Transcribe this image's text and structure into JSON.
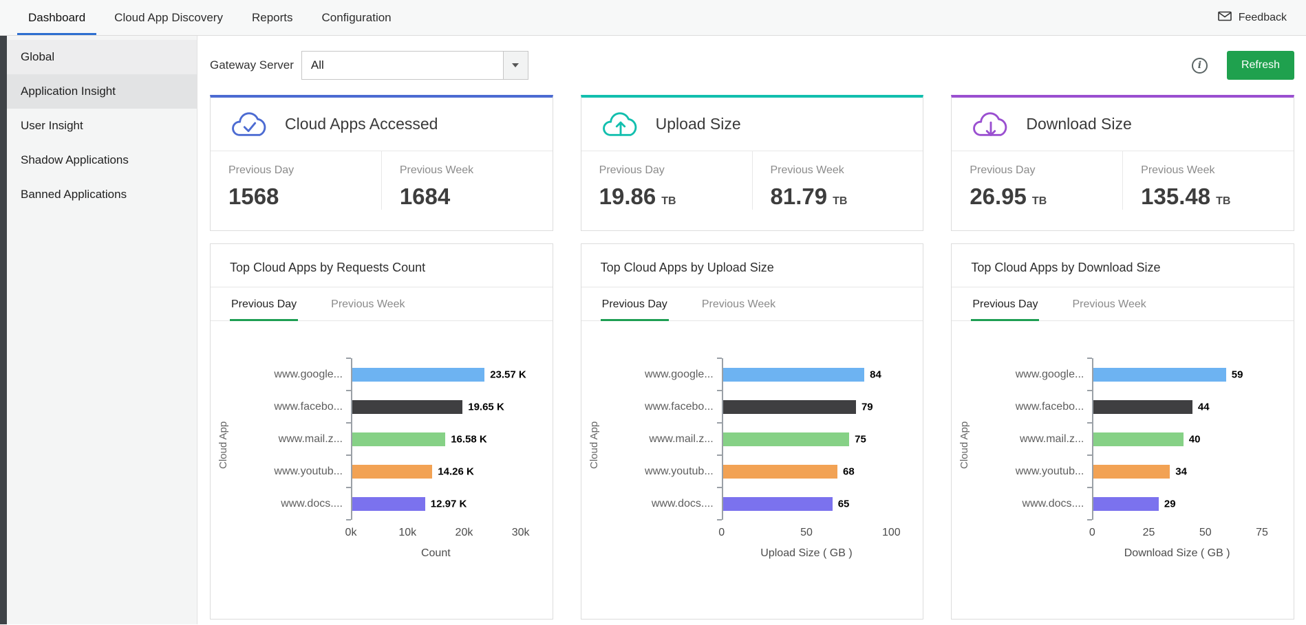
{
  "topnav": {
    "tabs": [
      {
        "label": "Dashboard",
        "active": true
      },
      {
        "label": "Cloud App Discovery",
        "active": false
      },
      {
        "label": "Reports",
        "active": false
      },
      {
        "label": "Configuration",
        "active": false
      }
    ],
    "feedback_label": "Feedback"
  },
  "sidebar": {
    "items": [
      {
        "label": "Global"
      },
      {
        "label": "Application Insight",
        "active": true
      },
      {
        "label": "User Insight"
      },
      {
        "label": "Shadow Applications"
      },
      {
        "label": "Banned Applications"
      }
    ]
  },
  "toolbar": {
    "gateway_server_label": "Gateway Server",
    "gateway_server_value": "All",
    "refresh_label": "Refresh"
  },
  "icons": {
    "info_glyph": "i"
  },
  "colors": {
    "bar_palette": [
      "#6db3f2",
      "#3f3f41",
      "#86d186",
      "#f2a254",
      "#7b72ee"
    ],
    "nav_active_underline": "#2e6fd0",
    "tab_active_underline": "#1e9e53",
    "refresh_button": "#1fa14e"
  },
  "stat_cards": [
    {
      "title": "Cloud Apps Accessed",
      "icon": "cloud-check-icon",
      "accent": "#4c6bd2",
      "previous_day_label": "Previous Day",
      "previous_day_value": "1568",
      "previous_day_unit": "",
      "previous_week_label": "Previous Week",
      "previous_week_value": "1684",
      "previous_week_unit": ""
    },
    {
      "title": "Upload Size",
      "icon": "cloud-upload-icon",
      "accent": "#12bfae",
      "previous_day_label": "Previous Day",
      "previous_day_value": "19.86",
      "previous_day_unit": "TB",
      "previous_week_label": "Previous Week",
      "previous_week_value": "81.79",
      "previous_week_unit": "TB"
    },
    {
      "title": "Download Size",
      "icon": "cloud-download-icon",
      "accent": "#9a4fd0",
      "previous_day_label": "Previous Day",
      "previous_day_value": "26.95",
      "previous_day_unit": "TB",
      "previous_week_label": "Previous Week",
      "previous_week_value": "135.48",
      "previous_week_unit": "TB"
    }
  ],
  "chart_data": [
    {
      "type": "bar",
      "orientation": "horizontal",
      "title": "Top Cloud Apps by Requests Count",
      "tabs": [
        "Previous Day",
        "Previous Week"
      ],
      "active_tab": "Previous Day",
      "categories": [
        "www.google...",
        "www.facebo...",
        "www.mail.z...",
        "www.youtub...",
        "www.docs...."
      ],
      "values": [
        23570,
        19650,
        16580,
        14260,
        12970
      ],
      "value_labels": [
        "23.57 K",
        "19.65 K",
        "16.58 K",
        "14.26 K",
        "12.97 K"
      ],
      "xlim": [
        0,
        30000
      ],
      "xtick_labels": [
        "0k",
        "10k",
        "20k",
        "30k"
      ],
      "xlabel": "Count",
      "ylabel": "Cloud App"
    },
    {
      "type": "bar",
      "orientation": "horizontal",
      "title": "Top Cloud Apps by Upload Size",
      "tabs": [
        "Previous Day",
        "Previous Week"
      ],
      "active_tab": "Previous Day",
      "categories": [
        "www.google...",
        "www.facebo...",
        "www.mail.z...",
        "www.youtub...",
        "www.docs...."
      ],
      "values": [
        84,
        79,
        75,
        68,
        65
      ],
      "value_labels": [
        "84",
        "79",
        "75",
        "68",
        "65"
      ],
      "xlim": [
        0,
        100
      ],
      "xtick_labels": [
        "0",
        "50",
        "100"
      ],
      "xlabel": "Upload Size ( GB )",
      "ylabel": "Cloud App"
    },
    {
      "type": "bar",
      "orientation": "horizontal",
      "title": "Top Cloud Apps by Download Size",
      "tabs": [
        "Previous Day",
        "Previous Week"
      ],
      "active_tab": "Previous Day",
      "categories": [
        "www.google...",
        "www.facebo...",
        "www.mail.z...",
        "www.youtub...",
        "www.docs...."
      ],
      "values": [
        59,
        44,
        40,
        34,
        29
      ],
      "value_labels": [
        "59",
        "44",
        "40",
        "34",
        "29"
      ],
      "xlim": [
        0,
        75
      ],
      "xtick_labels": [
        "0",
        "25",
        "50",
        "75"
      ],
      "xlabel": "Download Size ( GB )",
      "ylabel": "Cloud App"
    }
  ]
}
